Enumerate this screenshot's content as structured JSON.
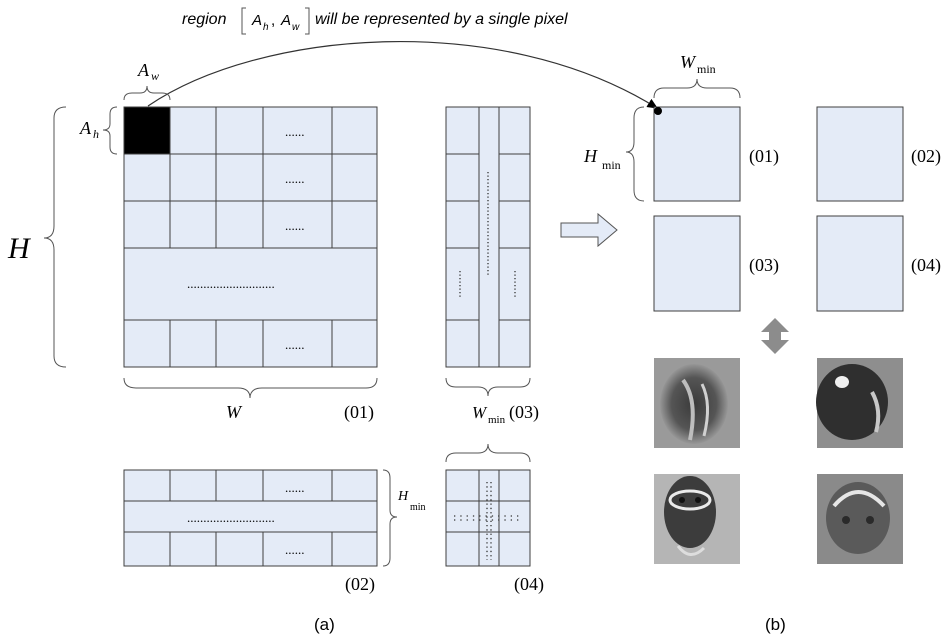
{
  "caption_top": {
    "prefix": "region",
    "ah": "A",
    "ah_sub": "h",
    "comma": ",",
    "aw": "A",
    "aw_sub": "w",
    "suffix": "will be represented by a single pixel"
  },
  "labels": {
    "aw": "A",
    "aw_sub": "w",
    "ah": "A",
    "ah_sub": "h",
    "H": "H",
    "W": "W",
    "wmin": "W",
    "wmin_sub": "min",
    "hmin": "H",
    "hmin_sub": "min",
    "ellipsis_short": "......",
    "ellipsis_long": "..........................."
  },
  "panel_a": {
    "tag_01": "(01)",
    "tag_02": "(02)",
    "tag_03": "(03)",
    "tag_04": "(04)",
    "caption": "(a)"
  },
  "panel_b": {
    "tag_01": "(01)",
    "tag_02": "(02)",
    "tag_03": "(03)",
    "tag_04": "(04)",
    "caption": "(b)"
  },
  "colors": {
    "cell_fill": "#e4ebf7",
    "selected_cell": "#000000",
    "arrow_fill": "#e4ebf7",
    "double_arrow": "#8c8c8c"
  }
}
